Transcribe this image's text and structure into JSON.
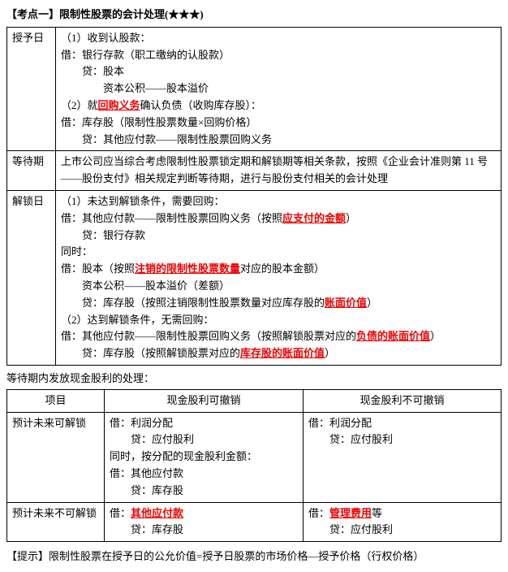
{
  "title": "【考点一】限制性股票的会计处理(★★★)",
  "rows": {
    "grant": {
      "label": "授予日",
      "l1": "（1）收到认股款：",
      "l2": "借：银行存款（职工缴纳的认股款）",
      "l3": "　　贷：股本",
      "l4": "　　　　资本公积——股本溢价",
      "l5a": "（2）就",
      "l5b": "回购义务",
      "l5c": "确认负债（收购库存股）：",
      "l6": "借：库存股（限制性股票数量×回购价格）",
      "l7": "　　贷：其他应付款——限制性股票回购义务"
    },
    "wait": {
      "label": "等待期",
      "l1": "上市公司应当综合考虑限制性股票锁定期和解锁期等相关条款，按照《企业会计准则第 11 号——股份支付》相关规定判断等待期，进行与股份支付相关的会计处理"
    },
    "unlock": {
      "label": "解锁日",
      "l1": "（1）未达到解锁条件，需要回购：",
      "l2a": "借：其他应付款——限制性股票回购义务（按照",
      "l2b": "应支付的金额",
      "l2c": "）",
      "l3": "　　贷：银行存款",
      "l4": "同时：",
      "l5a": "借：股本（按照",
      "l5b": "注销的限制性股票数量",
      "l5c": "对应的股本金额）",
      "l6": "　　资本公积——股本溢价（差额）",
      "l7a": "　　贷：库存股（按照注销限制性股票数量对应库存股的",
      "l7b": "账面价值",
      "l7c": "）",
      "l8": "（2）达到解锁条件，无需回购：",
      "l9a": "借：其他应付款——限制性股票回购义务（按照解锁股票对应的",
      "l9b": "负债的账面价值",
      "l9c": "）",
      "l10a": "　　贷：库存股（按照解锁股票对应的",
      "l10b": "库存股的账面价值",
      "l10c": "）"
    }
  },
  "subtitle": "等待期内发放现金股利的处理：",
  "sub": {
    "h1": "项目",
    "h2": "现金股利可撤销",
    "h3": "现金股利不可撤销",
    "r1": {
      "c1": "预计未来可解锁",
      "c2l1": "借：利润分配",
      "c2l2": "　　贷：应付股利",
      "c2l3": "同时，按分配的现金股利金额：",
      "c2l4": "借：其他应付款",
      "c2l5": "　　贷：库存股",
      "c3l1": "借：利润分配",
      "c3l2": "　　贷：应付股利"
    },
    "r2": {
      "c1": "预计未来不可解锁",
      "c2a": "借：",
      "c2b": "其他应付款",
      "c2l2": "　　贷：库存股",
      "c3a": "借：",
      "c3b": "管理费用",
      "c3c": "等",
      "c3l2": "　　贷：应付股利"
    }
  },
  "tip": "【提示】限制性股票在授予日的公允价值=授予日股票的市场价格—授予价格（行权价格）"
}
